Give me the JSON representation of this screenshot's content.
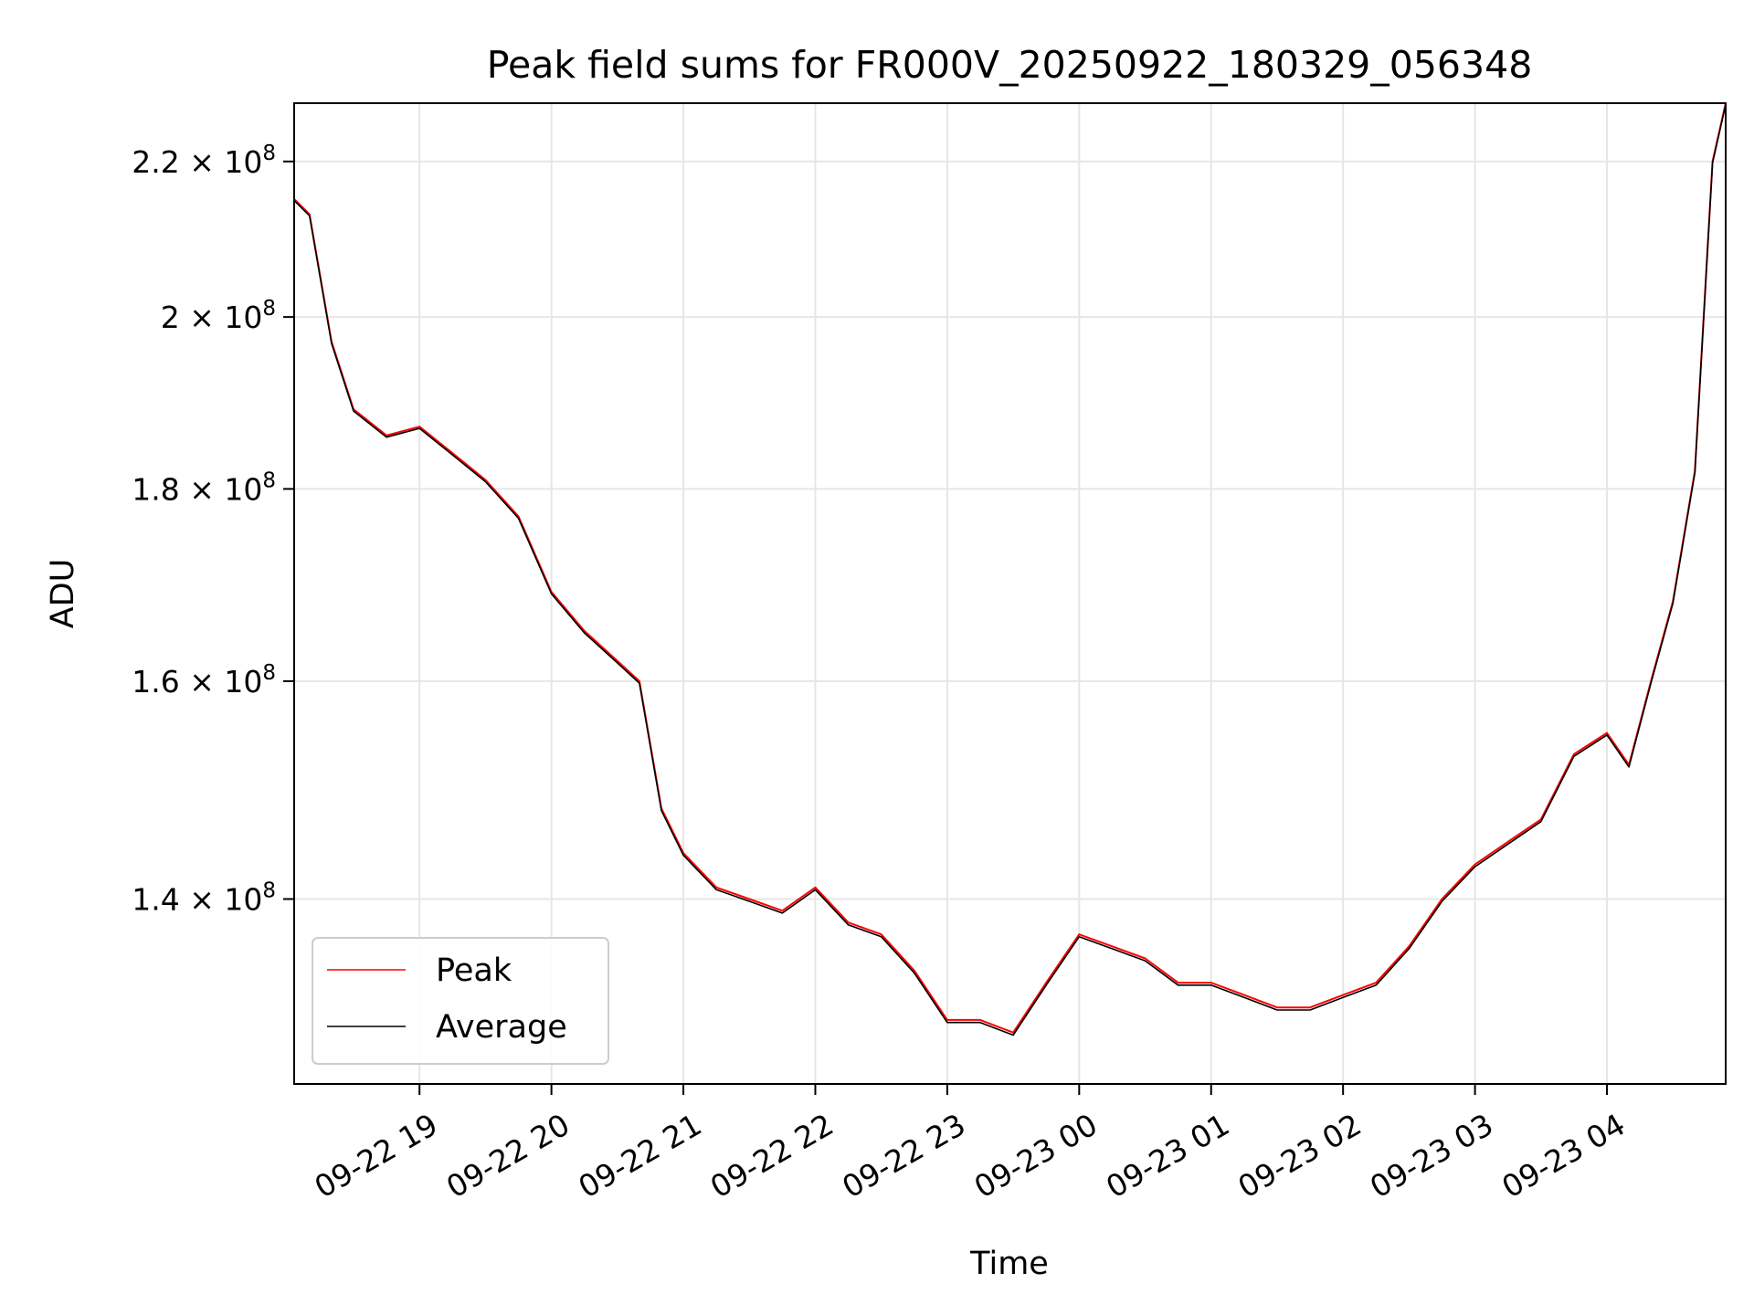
{
  "chart_data": {
    "type": "line",
    "title": "Peak field sums for FR000V_20250922_180329_056348",
    "xlabel": "Time",
    "ylabel": "ADU",
    "y_scale": "log",
    "xlim": [
      "2025-09-22 18:03",
      "2025-09-23 04:54"
    ],
    "ylim": [
      125000000,
      228000000
    ],
    "grid": true,
    "legend_position": "lower-left",
    "x_tick_labels": [
      "09-22 19",
      "09-22 20",
      "09-22 21",
      "09-22 22",
      "09-22 23",
      "09-23 00",
      "09-23 01",
      "09-23 02",
      "09-23 03",
      "09-23 04"
    ],
    "x_tick_times": [
      "2025-09-22 19:00",
      "2025-09-22 20:00",
      "2025-09-22 21:00",
      "2025-09-22 22:00",
      "2025-09-22 23:00",
      "2025-09-23 00:00",
      "2025-09-23 01:00",
      "2025-09-23 02:00",
      "2025-09-23 03:00",
      "2025-09-23 04:00"
    ],
    "y_ticks": [
      {
        "value": 140000000,
        "mantissa": "1.4",
        "exponent": "8"
      },
      {
        "value": 160000000,
        "mantissa": "1.6",
        "exponent": "8"
      },
      {
        "value": 180000000,
        "mantissa": "1.8",
        "exponent": "8"
      },
      {
        "value": 200000000,
        "mantissa": "2",
        "exponent": "8"
      },
      {
        "value": 220000000,
        "mantissa": "2.2",
        "exponent": "8"
      }
    ],
    "times_sign": "×",
    "exp_base": "10",
    "x": [
      "2025-09-22 18:03",
      "2025-09-22 18:10",
      "2025-09-22 18:20",
      "2025-09-22 18:30",
      "2025-09-22 18:45",
      "2025-09-22 19:00",
      "2025-09-22 19:15",
      "2025-09-22 19:30",
      "2025-09-22 19:45",
      "2025-09-22 20:00",
      "2025-09-22 20:15",
      "2025-09-22 20:30",
      "2025-09-22 20:40",
      "2025-09-22 20:50",
      "2025-09-22 21:00",
      "2025-09-22 21:15",
      "2025-09-22 21:30",
      "2025-09-22 21:45",
      "2025-09-22 22:00",
      "2025-09-22 22:15",
      "2025-09-22 22:30",
      "2025-09-22 22:45",
      "2025-09-22 23:00",
      "2025-09-22 23:15",
      "2025-09-22 23:30",
      "2025-09-22 23:45",
      "2025-09-23 00:00",
      "2025-09-23 00:15",
      "2025-09-23 00:30",
      "2025-09-23 00:45",
      "2025-09-23 01:00",
      "2025-09-23 01:15",
      "2025-09-23 01:30",
      "2025-09-23 01:45",
      "2025-09-23 02:00",
      "2025-09-23 02:15",
      "2025-09-23 02:30",
      "2025-09-23 02:45",
      "2025-09-23 03:00",
      "2025-09-23 03:15",
      "2025-09-23 03:30",
      "2025-09-23 03:45",
      "2025-09-23 04:00",
      "2025-09-23 04:10",
      "2025-09-23 04:20",
      "2025-09-23 04:30",
      "2025-09-23 04:40",
      "2025-09-23 04:48",
      "2025-09-23 04:54"
    ],
    "series": [
      {
        "name": "Peak",
        "color": "#ff0000",
        "values": [
          215000000,
          213000000,
          197000000,
          189000000,
          186000000,
          187000000,
          184000000,
          181000000,
          177000000,
          169000000,
          165000000,
          162000000,
          160000000,
          148000000,
          144000000,
          141000000,
          140000000,
          139000000,
          141000000,
          138000000,
          137000000,
          134000000,
          130000000,
          130000000,
          129000000,
          133000000,
          137000000,
          136000000,
          135000000,
          133000000,
          133000000,
          132000000,
          131000000,
          131000000,
          132000000,
          133000000,
          136000000,
          140000000,
          143000000,
          145000000,
          147000000,
          153000000,
          155000000,
          152000000,
          160000000,
          168000000,
          182000000,
          220000000,
          228000000
        ]
      },
      {
        "name": "Average",
        "color": "#000000",
        "values": [
          214800000,
          212800000,
          196800000,
          188800000,
          185800000,
          186800000,
          183800000,
          180800000,
          176800000,
          168800000,
          164800000,
          161800000,
          159800000,
          147800000,
          143800000,
          140800000,
          139800000,
          138800000,
          140800000,
          137800000,
          136800000,
          133800000,
          129800000,
          129800000,
          128800000,
          132800000,
          136800000,
          135800000,
          134800000,
          132800000,
          132800000,
          131800000,
          130800000,
          130800000,
          131800000,
          132800000,
          135800000,
          139800000,
          142800000,
          144800000,
          146800000,
          152800000,
          154800000,
          151800000,
          159800000,
          167800000,
          181800000,
          219800000,
          227800000
        ]
      }
    ]
  }
}
